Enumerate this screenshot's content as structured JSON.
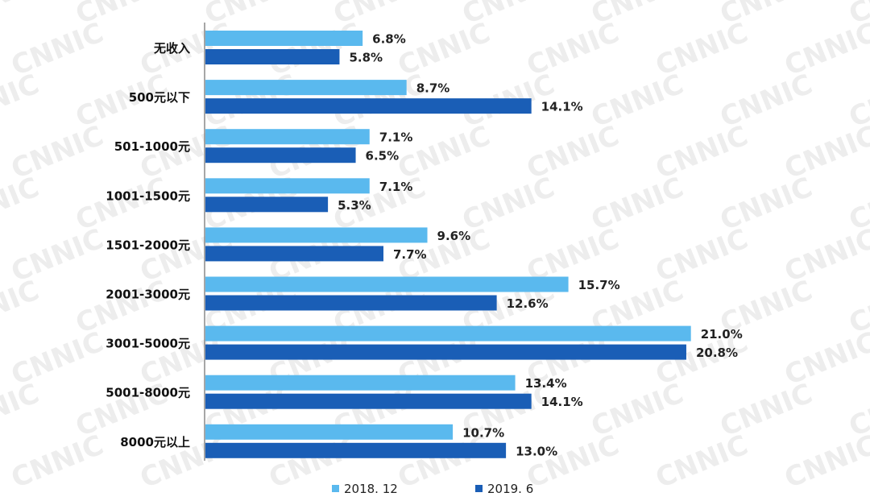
{
  "chart_data": {
    "type": "bar",
    "orientation": "horizontal",
    "title": "",
    "xlabel": "",
    "ylabel": "",
    "xlim": [
      0,
      22
    ],
    "grid": false,
    "legend_position": "bottom",
    "categories": [
      "无收入",
      "500元以下",
      "501-1000元",
      "1001-1500元",
      "1501-2000元",
      "2001-3000元",
      "3001-5000元",
      "5001-8000元",
      "8000元以上"
    ],
    "series": [
      {
        "name": "2018. 12",
        "color": "#5ab9ee",
        "values": [
          6.8,
          8.7,
          7.1,
          7.1,
          9.6,
          15.7,
          21.0,
          13.4,
          10.7
        ],
        "labels": [
          "6.8%",
          "8.7%",
          "7.1%",
          "7.1%",
          "9.6%",
          "15.7%",
          "21.0%",
          "13.4%",
          "10.7%"
        ]
      },
      {
        "name": "2019. 6",
        "color": "#1a5eb6",
        "values": [
          5.8,
          14.1,
          6.5,
          5.3,
          7.7,
          12.6,
          20.8,
          14.1,
          13.0
        ],
        "labels": [
          "5.8%",
          "14.1%",
          "6.5%",
          "5.3%",
          "7.7%",
          "12.6%",
          "20.8%",
          "14.1%",
          "13.0%"
        ]
      }
    ],
    "watermark_text": "CNNIC"
  }
}
